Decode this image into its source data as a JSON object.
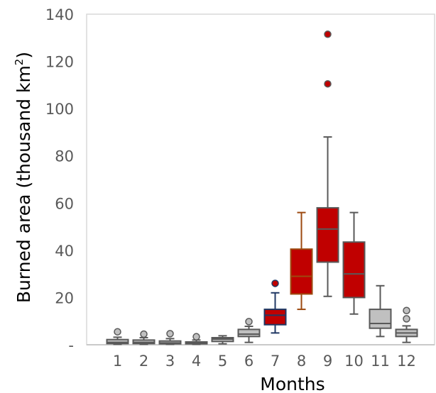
{
  "chart_data": {
    "type": "box",
    "xlabel": "Months",
    "ylabel_main": "Burned area (thousand km",
    "ylabel_sup": "2",
    "ylabel_close": ")",
    "ylim": [
      0,
      140
    ],
    "y_ticks": [
      {
        "value": 0,
        "label": "-"
      },
      {
        "value": 20,
        "label": "20"
      },
      {
        "value": 40,
        "label": "40"
      },
      {
        "value": 60,
        "label": "60"
      },
      {
        "value": 80,
        "label": "80"
      },
      {
        "value": 100,
        "label": "100"
      },
      {
        "value": 120,
        "label": "120"
      },
      {
        "value": 140,
        "label": "140"
      }
    ],
    "grid": false,
    "categories": [
      "1",
      "2",
      "3",
      "4",
      "5",
      "6",
      "7",
      "8",
      "9",
      "10",
      "11",
      "12"
    ],
    "colors": {
      "gray_fill": "#c0c0c0",
      "red_fill": "#c00000",
      "gray_line": "#595959",
      "july_line": "#203864",
      "aug_line": "#9c4a10",
      "outlier_red": "#c00000"
    },
    "boxes": [
      {
        "month": "1",
        "whisker_low": 0.2,
        "q1": 0.5,
        "median": 1.0,
        "q3": 2.2,
        "whisker_high": 3.2,
        "outliers": [
          5.5
        ],
        "fill": "gray"
      },
      {
        "month": "2",
        "whisker_low": 0.2,
        "q1": 0.5,
        "median": 1.0,
        "q3": 2.0,
        "whisker_high": 3.0,
        "outliers": [
          4.5
        ],
        "fill": "gray"
      },
      {
        "month": "3",
        "whisker_low": 0.2,
        "q1": 0.4,
        "median": 0.8,
        "q3": 1.6,
        "whisker_high": 2.6,
        "outliers": [
          4.7
        ],
        "fill": "gray"
      },
      {
        "month": "4",
        "whisker_low": 0.2,
        "q1": 0.4,
        "median": 0.7,
        "q3": 1.2,
        "whisker_high": 2.0,
        "outliers": [
          3.4
        ],
        "fill": "gray"
      },
      {
        "month": "5",
        "whisker_low": 0.4,
        "q1": 1.4,
        "median": 2.4,
        "q3": 3.0,
        "whisker_high": 3.8,
        "outliers": [],
        "fill": "gray"
      },
      {
        "month": "6",
        "whisker_low": 1.0,
        "q1": 3.5,
        "median": 4.5,
        "q3": 6.5,
        "whisker_high": 7.8,
        "outliers": [
          9.8
        ],
        "fill": "gray"
      },
      {
        "month": "7",
        "whisker_low": 5.0,
        "q1": 8.5,
        "median": 12.5,
        "q3": 15.0,
        "whisker_high": 22.0,
        "outliers": [
          26.0
        ],
        "fill": "red",
        "line": "july"
      },
      {
        "month": "8",
        "whisker_low": 15.0,
        "q1": 21.5,
        "median": 29.0,
        "q3": 40.5,
        "whisker_high": 56.0,
        "outliers": [],
        "fill": "red",
        "line": "aug"
      },
      {
        "month": "9",
        "whisker_low": 20.5,
        "q1": 35.0,
        "median": 49.0,
        "q3": 58.0,
        "whisker_high": 88.0,
        "outliers": [
          110.5,
          131.5
        ],
        "fill": "red"
      },
      {
        "month": "10",
        "whisker_low": 13.0,
        "q1": 20.0,
        "median": 30.0,
        "q3": 43.5,
        "whisker_high": 56.0,
        "outliers": [],
        "fill": "red"
      },
      {
        "month": "11",
        "whisker_low": 3.5,
        "q1": 7.0,
        "median": 9.0,
        "q3": 15.0,
        "whisker_high": 25.0,
        "outliers": [],
        "fill": "gray"
      },
      {
        "month": "12",
        "whisker_low": 1.0,
        "q1": 3.5,
        "median": 5.0,
        "q3": 6.5,
        "whisker_high": 8.0,
        "outliers": [
          11.0,
          14.5
        ],
        "fill": "gray"
      }
    ]
  }
}
